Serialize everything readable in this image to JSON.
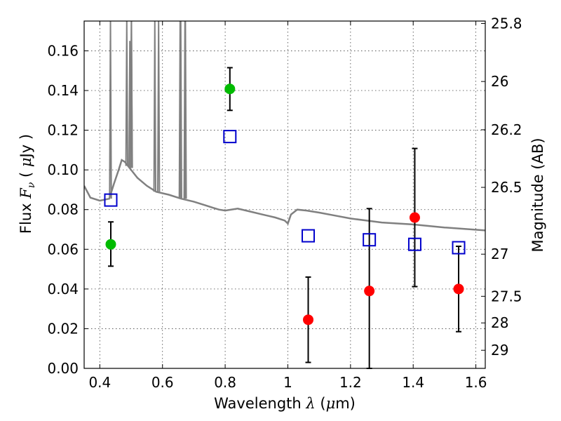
{
  "chart_data": {
    "type": "scatter",
    "xlabel_parts": [
      "Wavelength ",
      "λ",
      " (",
      "μ",
      "m)"
    ],
    "ylabel_parts": [
      "Flux ",
      "F",
      "ν",
      " ( ",
      "μ",
      "Jy )"
    ],
    "y2label": "Magnitude (AB)",
    "xlim": [
      0.35,
      1.63
    ],
    "ylim": [
      0.0,
      0.175
    ],
    "x_ticks": [
      0.4,
      0.6,
      0.8,
      1.0,
      1.2,
      1.4,
      1.6
    ],
    "x_tick_labels": [
      "0.4",
      "0.6",
      "0.8",
      "1",
      "1.2",
      "1.4",
      "1.6"
    ],
    "y_ticks": [
      0.0,
      0.02,
      0.04,
      0.06,
      0.08,
      0.1,
      0.12,
      0.14,
      0.16
    ],
    "y_tick_labels": [
      "0.00",
      "0.02",
      "0.04",
      "0.06",
      "0.08",
      "0.10",
      "0.12",
      "0.14",
      "0.16"
    ],
    "y2_ticks": [
      25.8,
      26,
      26.2,
      26.5,
      27,
      27.5,
      28,
      29
    ],
    "y2_tick_labels": [
      "25.8",
      "26",
      "26.2",
      "26.5",
      "27",
      "27.5",
      "28",
      "29"
    ],
    "grid": true,
    "colors": {
      "model": "#808080",
      "detected": "#00bb00",
      "non_detected": "#ff0000",
      "model_photometry": "#0000cc",
      "errorbar": "#000000"
    },
    "series": [
      {
        "marker": "circle",
        "color": "#00bb00",
        "points": [
          {
            "x": 0.435,
            "y": 0.0625,
            "yerr_low": 0.0515,
            "yerr_high": 0.0738
          },
          {
            "x": 0.815,
            "y": 0.1408,
            "yerr_low": 0.13,
            "yerr_high": 0.1515
          }
        ]
      },
      {
        "marker": "circle",
        "color": "#ff0000",
        "points": [
          {
            "x": 1.065,
            "y": 0.0245,
            "yerr_low": 0.003,
            "yerr_high": 0.046
          },
          {
            "x": 1.26,
            "y": 0.039,
            "yerr_low": 0.0,
            "yerr_high": 0.0805
          },
          {
            "x": 1.405,
            "y": 0.076,
            "yerr_low": 0.0412,
            "yerr_high": 0.1108
          },
          {
            "x": 1.545,
            "y": 0.04,
            "yerr_low": 0.0185,
            "yerr_high": 0.0615
          }
        ]
      },
      {
        "marker": "square",
        "color": "#0000cc",
        "points": [
          {
            "x": 0.435,
            "y": 0.0848
          },
          {
            "x": 0.815,
            "y": 0.1168
          },
          {
            "x": 1.065,
            "y": 0.0668
          },
          {
            "x": 1.26,
            "y": 0.0648
          },
          {
            "x": 1.405,
            "y": 0.0625
          },
          {
            "x": 1.545,
            "y": 0.0608
          }
        ]
      }
    ],
    "model_spectrum": {
      "continuum": [
        [
          0.35,
          0.092
        ],
        [
          0.37,
          0.086
        ],
        [
          0.4,
          0.0845
        ],
        [
          0.43,
          0.0855
        ],
        [
          0.445,
          0.093
        ],
        [
          0.46,
          0.1
        ],
        [
          0.47,
          0.105
        ],
        [
          0.48,
          0.104
        ],
        [
          0.5,
          0.1
        ],
        [
          0.52,
          0.096
        ],
        [
          0.55,
          0.092
        ],
        [
          0.58,
          0.089
        ],
        [
          0.62,
          0.0875
        ],
        [
          0.66,
          0.0855
        ],
        [
          0.7,
          0.084
        ],
        [
          0.74,
          0.082
        ],
        [
          0.76,
          0.081
        ],
        [
          0.78,
          0.08
        ],
        [
          0.8,
          0.0795
        ],
        [
          0.84,
          0.0805
        ],
        [
          0.88,
          0.079
        ],
        [
          0.92,
          0.0775
        ],
        [
          0.96,
          0.076
        ],
        [
          0.99,
          0.0745
        ],
        [
          1.0,
          0.073
        ],
        [
          1.01,
          0.0775
        ],
        [
          1.03,
          0.08
        ],
        [
          1.06,
          0.0795
        ],
        [
          1.1,
          0.0785
        ],
        [
          1.15,
          0.077
        ],
        [
          1.2,
          0.0755
        ],
        [
          1.3,
          0.0735
        ],
        [
          1.4,
          0.0725
        ],
        [
          1.5,
          0.071
        ],
        [
          1.63,
          0.0695
        ]
      ],
      "emission_lines": [
        {
          "x": 0.434,
          "base": 0.0855,
          "peak": 0.175
        },
        {
          "x": 0.486,
          "base": 0.102,
          "peak": 0.175
        },
        {
          "x": 0.501,
          "base": 0.101,
          "peak": 0.175
        },
        {
          "x": 0.4959,
          "base": 0.101,
          "peak": 0.165
        },
        {
          "x": 0.5007,
          "base": 0.101,
          "peak": 0.175
        },
        {
          "x": 0.5755,
          "base": 0.089,
          "peak": 0.175
        },
        {
          "x": 0.5876,
          "base": 0.089,
          "peak": 0.175
        },
        {
          "x": 0.6563,
          "base": 0.0855,
          "peak": 0.175
        },
        {
          "x": 0.6583,
          "base": 0.0855,
          "peak": 0.175
        },
        {
          "x": 0.6717,
          "base": 0.0855,
          "peak": 0.175
        },
        {
          "x": 0.6731,
          "base": 0.0855,
          "peak": 0.175
        }
      ]
    }
  }
}
